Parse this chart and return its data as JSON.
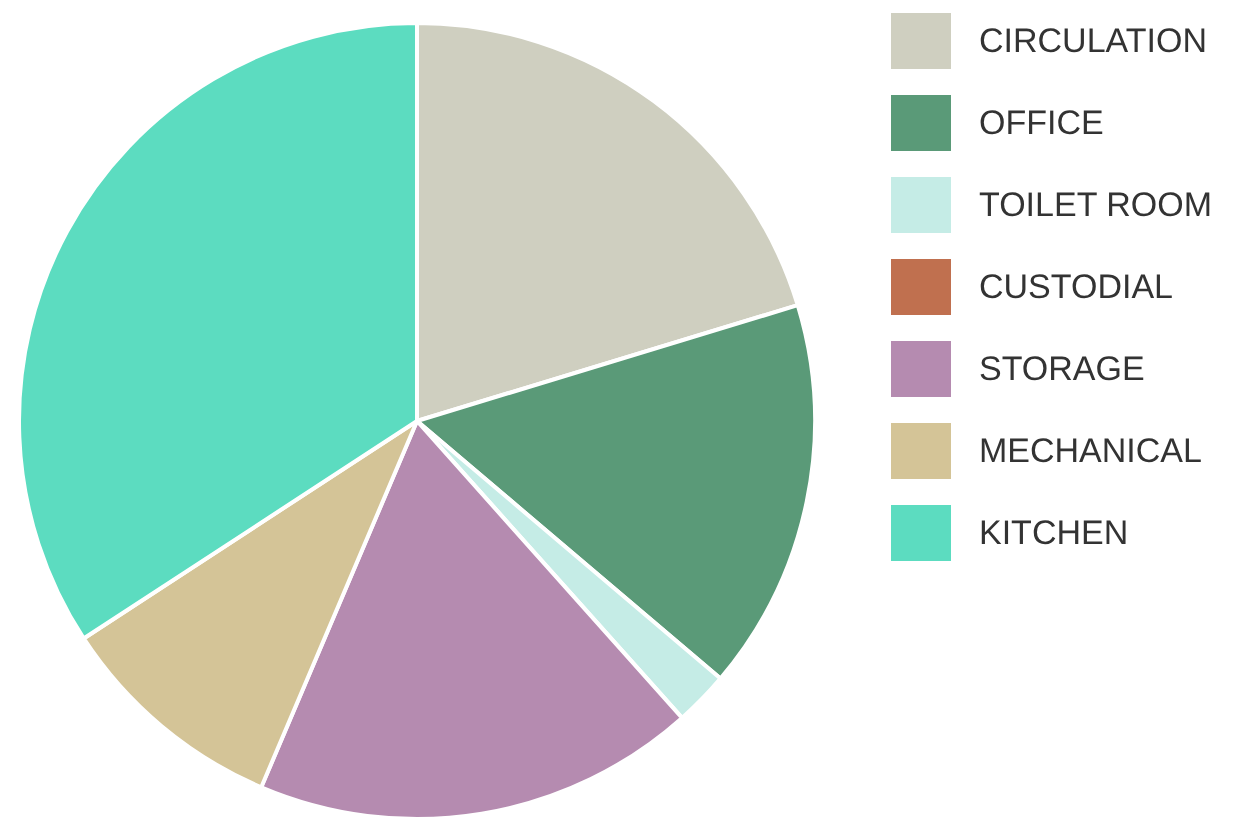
{
  "chart_data": {
    "type": "pie",
    "categories": [
      "CIRCULATION",
      "OFFICE",
      "TOILET ROOM",
      "CUSTODIAL",
      "STORAGE",
      "MECHANICAL",
      "KITCHEN"
    ],
    "values": [
      20.3,
      15.9,
      2.2,
      0,
      18.0,
      9.4,
      34.2
    ],
    "colors": [
      "#cfcfc0",
      "#5a9a78",
      "#c5ece6",
      "#c0704f",
      "#b58bb0",
      "#d4c497",
      "#5cdcc0"
    ],
    "legend": "right"
  }
}
